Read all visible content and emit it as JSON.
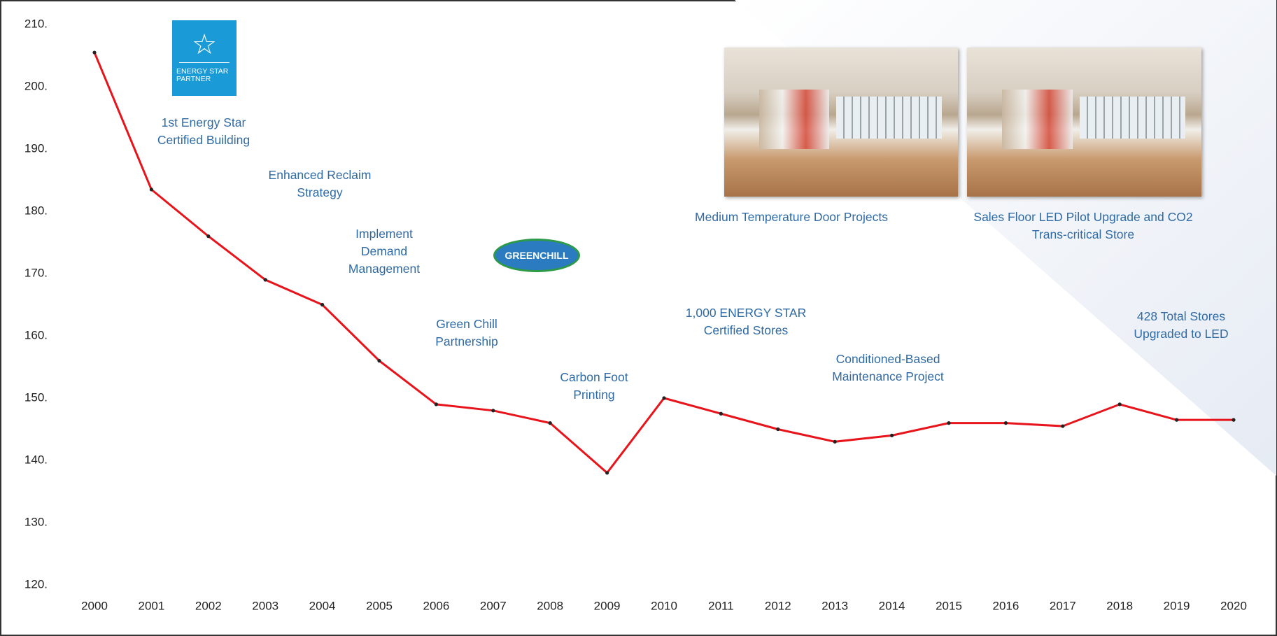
{
  "chart_data": {
    "type": "line",
    "categories": [
      "2000",
      "2001",
      "2002",
      "2003",
      "2004",
      "2005",
      "2006",
      "2007",
      "2008",
      "2009",
      "2010",
      "2011",
      "2012",
      "2013",
      "2014",
      "2015",
      "2016",
      "2017",
      "2018",
      "2019",
      "2020"
    ],
    "series": [
      {
        "color": "#e8141b",
        "values": [
          205.5,
          183.5,
          176,
          169,
          165,
          156,
          149,
          148,
          146,
          138,
          150,
          147.5,
          145,
          143,
          144,
          146,
          146,
          145.5,
          149,
          146.5,
          146.5
        ]
      }
    ],
    "ylim": [
      120,
      210
    ],
    "yticks": [
      {
        "value": 120,
        "label": "120."
      },
      {
        "value": 130,
        "label": "130."
      },
      {
        "value": 140,
        "label": "140."
      },
      {
        "value": 150,
        "label": "150."
      },
      {
        "value": 160,
        "label": "160."
      },
      {
        "value": 170,
        "label": "170."
      },
      {
        "value": 180,
        "label": "180."
      },
      {
        "value": 190,
        "label": "190."
      },
      {
        "value": 200,
        "label": "200."
      },
      {
        "value": 210,
        "label": "210."
      }
    ],
    "annotations": [
      {
        "lines": [
          "1st Energy Star",
          "Certified Building"
        ]
      },
      {
        "lines": [
          "Enhanced Reclaim",
          "Strategy"
        ]
      },
      {
        "lines": [
          "Implement",
          "Demand",
          "Management"
        ]
      },
      {
        "lines": [
          "Green Chill",
          "Partnership"
        ]
      },
      {
        "lines": [
          "Carbon Foot",
          "Printing"
        ]
      },
      {
        "lines": [
          "1,000 ENERGY STAR",
          "Certified Stores"
        ]
      },
      {
        "lines": [
          "Conditioned-Based",
          "Maintenance Project"
        ]
      },
      {
        "lines": [
          "428  Total Stores",
          "Upgraded to LED"
        ]
      },
      {
        "lines": [
          "Medium Temperature Door Projects"
        ]
      },
      {
        "lines": [
          "Sales Floor LED Pilot Upgrade and CO2",
          "Trans-critical Store"
        ]
      }
    ],
    "logos": [
      {
        "lines": [
          "ENERGY STAR",
          "PARTNER"
        ]
      },
      {
        "lines": [
          "GREENCHILL"
        ]
      }
    ]
  }
}
